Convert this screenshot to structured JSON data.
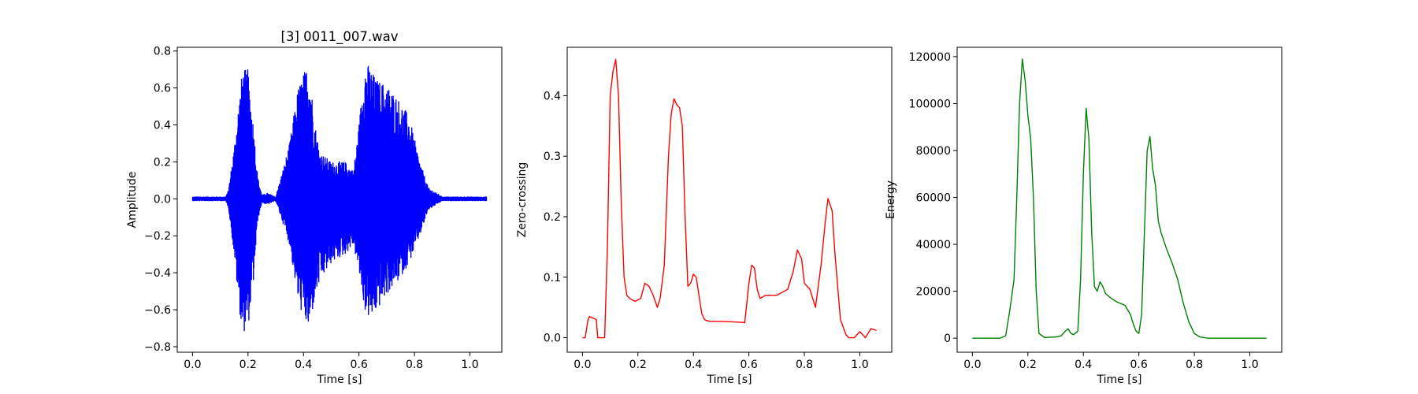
{
  "chart_data": [
    {
      "type": "line",
      "title": "[3] 0011_007.wav",
      "xlabel": "Time [s]",
      "ylabel": "Amplitude",
      "xlim": [
        -0.055,
        1.115
      ],
      "ylim": [
        -0.83,
        0.82
      ],
      "xticks": [
        0.0,
        0.2,
        0.4,
        0.6,
        0.8,
        1.0
      ],
      "xtick_labels": [
        "0.0",
        "0.2",
        "0.4",
        "0.6",
        "0.8",
        "1.0"
      ],
      "yticks": [
        -0.8,
        -0.6,
        -0.4,
        -0.2,
        0.0,
        0.2,
        0.4,
        0.6,
        0.8
      ],
      "ytick_labels": [
        "−0.8",
        "−0.6",
        "−0.4",
        "−0.2",
        "0.0",
        "0.2",
        "0.4",
        "0.6",
        "0.8"
      ],
      "color": "#0000ff",
      "grid": false,
      "envelope": {
        "x": [
          0.0,
          0.12,
          0.13,
          0.15,
          0.165,
          0.18,
          0.2,
          0.22,
          0.235,
          0.25,
          0.27,
          0.3,
          0.33,
          0.35,
          0.38,
          0.4,
          0.42,
          0.44,
          0.46,
          0.5,
          0.55,
          0.58,
          0.6,
          0.62,
          0.64,
          0.66,
          0.7,
          0.74,
          0.78,
          0.82,
          0.85,
          0.88,
          0.9,
          1.06
        ],
        "upper": [
          0.01,
          0.01,
          0.05,
          0.28,
          0.5,
          0.7,
          0.7,
          0.4,
          0.12,
          0.02,
          0.03,
          0.01,
          0.18,
          0.3,
          0.6,
          0.68,
          0.74,
          0.42,
          0.25,
          0.2,
          0.2,
          0.15,
          0.4,
          0.74,
          0.72,
          0.65,
          0.62,
          0.55,
          0.45,
          0.2,
          0.06,
          0.03,
          0.01,
          0.01
        ],
        "lower": [
          -0.01,
          -0.01,
          -0.05,
          -0.3,
          -0.55,
          -0.73,
          -0.7,
          -0.45,
          -0.12,
          -0.02,
          -0.03,
          -0.01,
          -0.15,
          -0.25,
          -0.55,
          -0.65,
          -0.72,
          -0.55,
          -0.45,
          -0.35,
          -0.3,
          -0.25,
          -0.4,
          -0.6,
          -0.66,
          -0.62,
          -0.52,
          -0.45,
          -0.35,
          -0.2,
          -0.06,
          -0.03,
          -0.01,
          -0.01
        ]
      }
    },
    {
      "type": "line",
      "title": "",
      "xlabel": "Time [s]",
      "ylabel": "Zero-crossing",
      "xlim": [
        -0.055,
        1.115
      ],
      "ylim": [
        -0.024,
        0.48
      ],
      "xticks": [
        0.0,
        0.2,
        0.4,
        0.6,
        0.8,
        1.0
      ],
      "xtick_labels": [
        "0.0",
        "0.2",
        "0.4",
        "0.6",
        "0.8",
        "1.0"
      ],
      "yticks": [
        0.0,
        0.1,
        0.2,
        0.3,
        0.4
      ],
      "ytick_labels": [
        "0.0",
        "0.1",
        "0.2",
        "0.3",
        "0.4"
      ],
      "color": "#ff0000",
      "grid": false,
      "series": [
        {
          "x": [
            0.0,
            0.01,
            0.02,
            0.025,
            0.05,
            0.055,
            0.065,
            0.08,
            0.09,
            0.1,
            0.11,
            0.12,
            0.13,
            0.14,
            0.15,
            0.16,
            0.17,
            0.19,
            0.21,
            0.225,
            0.24,
            0.255,
            0.27,
            0.28,
            0.295,
            0.31,
            0.32,
            0.33,
            0.34,
            0.35,
            0.36,
            0.37,
            0.38,
            0.39,
            0.4,
            0.41,
            0.42,
            0.43,
            0.44,
            0.45,
            0.46,
            0.5,
            0.55,
            0.585,
            0.6,
            0.61,
            0.62,
            0.63,
            0.64,
            0.66,
            0.7,
            0.74,
            0.76,
            0.775,
            0.79,
            0.8,
            0.82,
            0.84,
            0.86,
            0.875,
            0.885,
            0.9,
            0.91,
            0.93,
            0.95,
            0.96,
            0.98,
            1.0,
            1.02,
            1.04,
            1.06
          ],
          "y": [
            0.0,
            0.0,
            0.03,
            0.035,
            0.03,
            0.0,
            0.0,
            0.0,
            0.15,
            0.4,
            0.44,
            0.46,
            0.4,
            0.22,
            0.1,
            0.07,
            0.065,
            0.06,
            0.065,
            0.09,
            0.085,
            0.07,
            0.05,
            0.065,
            0.12,
            0.3,
            0.37,
            0.395,
            0.385,
            0.38,
            0.35,
            0.2,
            0.085,
            0.09,
            0.105,
            0.1,
            0.07,
            0.04,
            0.03,
            0.028,
            0.027,
            0.027,
            0.026,
            0.025,
            0.09,
            0.12,
            0.115,
            0.08,
            0.065,
            0.07,
            0.07,
            0.08,
            0.11,
            0.145,
            0.13,
            0.09,
            0.08,
            0.05,
            0.12,
            0.19,
            0.23,
            0.21,
            0.14,
            0.03,
            0.005,
            0.0,
            0.0,
            0.01,
            0.0,
            0.015,
            0.012
          ]
        }
      ]
    },
    {
      "type": "line",
      "title": "",
      "xlabel": "Time [s]",
      "ylabel": "Energy",
      "xlim": [
        -0.055,
        1.115
      ],
      "ylim": [
        -6000,
        124000
      ],
      "xticks": [
        0.0,
        0.2,
        0.4,
        0.6,
        0.8,
        1.0
      ],
      "xtick_labels": [
        "0.0",
        "0.2",
        "0.4",
        "0.6",
        "0.8",
        "1.0"
      ],
      "yticks": [
        0,
        20000,
        40000,
        60000,
        80000,
        100000,
        120000
      ],
      "ytick_labels": [
        "0",
        "20000",
        "40000",
        "60000",
        "80000",
        "100000",
        "120000"
      ],
      "color": "#008000",
      "grid": false,
      "series": [
        {
          "x": [
            0.0,
            0.1,
            0.12,
            0.135,
            0.15,
            0.16,
            0.17,
            0.18,
            0.19,
            0.2,
            0.21,
            0.22,
            0.23,
            0.24,
            0.26,
            0.3,
            0.32,
            0.335,
            0.345,
            0.355,
            0.365,
            0.38,
            0.39,
            0.4,
            0.41,
            0.42,
            0.43,
            0.44,
            0.45,
            0.46,
            0.47,
            0.48,
            0.5,
            0.52,
            0.55,
            0.57,
            0.58,
            0.59,
            0.6,
            0.61,
            0.62,
            0.63,
            0.64,
            0.65,
            0.66,
            0.67,
            0.68,
            0.7,
            0.72,
            0.74,
            0.76,
            0.78,
            0.8,
            0.82,
            0.85,
            1.06
          ],
          "y": [
            0,
            0,
            1000,
            12000,
            25000,
            60000,
            100000,
            119000,
            110000,
            95000,
            85000,
            60000,
            20000,
            2000,
            300,
            500,
            1000,
            3000,
            4000,
            2000,
            1500,
            3000,
            25000,
            70000,
            98000,
            85000,
            45000,
            22000,
            20000,
            24000,
            22000,
            19000,
            17000,
            15500,
            14000,
            10000,
            6000,
            3000,
            2000,
            10000,
            45000,
            80000,
            86000,
            72000,
            65000,
            50000,
            45000,
            38000,
            32000,
            25000,
            15000,
            7000,
            2000,
            500,
            0,
            0
          ]
        }
      ]
    }
  ]
}
